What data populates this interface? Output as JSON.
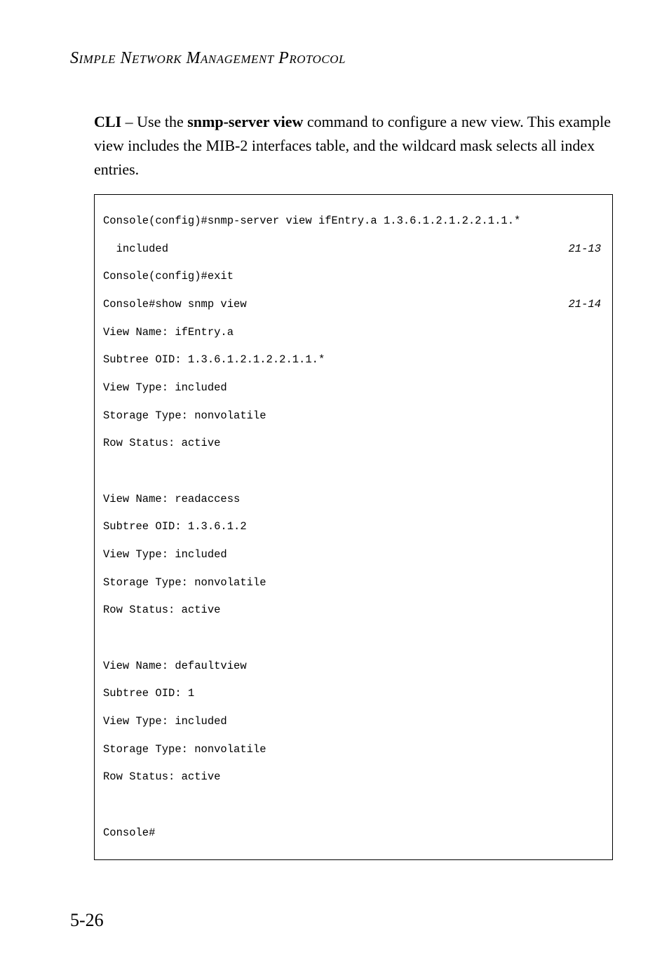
{
  "running_head": "Simple Network Management Protocol",
  "para": {
    "lead_bold": "CLI",
    "lead_rest": " – Use the ",
    "cmd_bold": "snmp-server view",
    "tail": " command to configure a new view. This example view includes the MIB-2 interfaces table, and the wildcard mask selects all index entries."
  },
  "code": {
    "line1_left": "Console(config)#snmp-server view ifEntry.a 1.3.6.1.2.1.2.2.1.1.*",
    "line2_left": "  included",
    "line2_ref": "21-13",
    "line3": "Console(config)#exit",
    "line4_left": "Console#show snmp view",
    "line4_ref": "21-14",
    "line5": "View Name: ifEntry.a",
    "line6": "Subtree OID: 1.3.6.1.2.1.2.2.1.1.*",
    "line7": "View Type: included",
    "line8": "Storage Type: nonvolatile",
    "line9": "Row Status: active",
    "blank1": "",
    "line10": "View Name: readaccess",
    "line11": "Subtree OID: 1.3.6.1.2",
    "line12": "View Type: included",
    "line13": "Storage Type: nonvolatile",
    "line14": "Row Status: active",
    "blank2": "",
    "line15": "View Name: defaultview",
    "line16": "Subtree OID: 1",
    "line17": "View Type: included",
    "line18": "Storage Type: nonvolatile",
    "line19": "Row Status: active",
    "blank3": "",
    "line20": "Console#"
  },
  "page_number": "5-26"
}
